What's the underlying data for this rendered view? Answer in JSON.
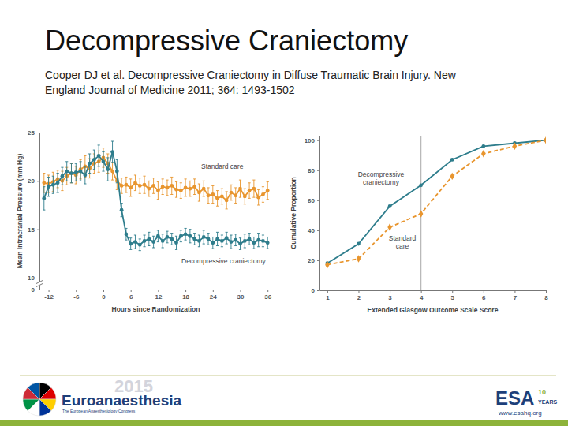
{
  "slide": {
    "title": "Decompressive Craniectomy",
    "citation": [
      "Cooper DJ et al. Decompressive Craniectomy in Diffuse Traumatic Brain Injury. New",
      "England Journal of Medicine 2011; 364: 1493-1502"
    ],
    "footer": {
      "congress": "Euroanaesthesia",
      "year": "2015",
      "congress_subtitle": "The European Anaesthesiology Congress",
      "society": "ESA",
      "anniversary": "10",
      "anniversary_unit": "YEARS",
      "url": "www.esahq.org"
    }
  },
  "chart_data": [
    {
      "type": "line",
      "x_label": "Hours since Randomization",
      "y_label": "Mean Intracranial Pressure (mm Hg)",
      "x": [
        -13,
        -12,
        -11,
        -10,
        -9,
        -8,
        -7,
        -6,
        -5,
        -4,
        -3,
        -2,
        -1,
        0,
        1,
        2,
        3,
        4,
        5,
        6,
        7,
        8,
        9,
        10,
        11,
        12,
        13,
        14,
        15,
        16,
        17,
        18,
        19,
        20,
        21,
        22,
        23,
        24,
        25,
        26,
        27,
        28,
        29,
        30,
        31,
        32,
        33,
        34,
        35,
        36
      ],
      "series": [
        {
          "name": "Standard care",
          "color": "#e8952e",
          "marker": "circle",
          "line_style": "solid",
          "values": [
            19.8,
            19.7,
            19.9,
            20.2,
            20.0,
            20.5,
            20.8,
            20.6,
            21.2,
            21.5,
            21.3,
            21.8,
            22.0,
            22.4,
            21.8,
            21.0,
            20.0,
            19.5,
            19.6,
            19.3,
            19.8,
            19.5,
            19.6,
            19.2,
            19.5,
            19.0,
            19.4,
            19.3,
            19.5,
            19.1,
            19.0,
            19.3,
            19.2,
            19.4,
            18.8,
            19.2,
            18.5,
            18.6,
            18.2,
            18.4,
            18.0,
            18.8,
            18.5,
            19.2,
            18.4,
            19.0,
            19.2,
            18.3,
            18.6,
            19.0
          ],
          "errors": [
            1.0,
            0.9,
            1.0,
            0.9,
            1.0,
            0.9,
            1.0,
            0.9,
            1.0,
            1.1,
            1.0,
            1.0,
            1.1,
            1.0,
            1.0,
            0.9,
            0.9,
            0.8,
            0.8,
            0.9,
            0.8,
            0.8,
            0.9,
            0.8,
            0.8,
            0.9,
            0.8,
            0.8,
            0.9,
            0.8,
            0.8,
            0.9,
            0.8,
            0.8,
            0.9,
            0.8,
            0.8,
            0.9,
            0.8,
            0.8,
            0.9,
            0.8,
            0.8,
            0.9,
            0.8,
            0.8,
            0.9,
            0.8,
            0.8,
            0.9
          ]
        },
        {
          "name": "Decompressive craniectomy",
          "color": "#2e7d8c",
          "marker": "circle",
          "line_style": "solid",
          "values": [
            18.2,
            19.4,
            19.6,
            19.8,
            20.5,
            21.0,
            20.8,
            20.9,
            21.0,
            20.6,
            21.8,
            22.2,
            22.6,
            22.0,
            21.2,
            23.0,
            21.0,
            17.0,
            14.5,
            13.5,
            13.7,
            13.4,
            13.8,
            14.0,
            13.7,
            14.3,
            13.8,
            14.2,
            14.0,
            13.6,
            14.3,
            14.5,
            14.3,
            14.0,
            13.8,
            14.2,
            14.0,
            13.6,
            14.0,
            13.8,
            14.1,
            13.7,
            13.9,
            13.5,
            13.8,
            14.0,
            13.6,
            13.9,
            13.8,
            13.6
          ],
          "errors": [
            1.2,
            1.0,
            0.9,
            1.0,
            0.9,
            1.0,
            1.0,
            0.9,
            1.0,
            0.9,
            1.0,
            1.0,
            1.1,
            1.0,
            1.2,
            1.1,
            1.2,
            0.7,
            0.6,
            0.6,
            0.7,
            0.6,
            0.6,
            0.7,
            0.6,
            0.6,
            0.7,
            0.6,
            0.6,
            0.7,
            0.6,
            0.6,
            0.7,
            0.6,
            0.6,
            0.7,
            0.6,
            0.6,
            0.7,
            0.6,
            0.6,
            0.7,
            0.6,
            0.6,
            0.7,
            0.6,
            0.6,
            0.7,
            0.6,
            0.6
          ]
        }
      ],
      "xlim": [
        -14,
        37
      ],
      "xticks": [
        -12,
        -6,
        0,
        6,
        12,
        18,
        24,
        30,
        36
      ],
      "ylim": [
        0,
        25
      ],
      "yticks": [
        0,
        10,
        15,
        20,
        25
      ]
    },
    {
      "type": "line",
      "x_label": "Extended Glasgow Outcome Scale Score",
      "y_label": "Cumulative Proportion",
      "x": [
        1,
        2,
        3,
        4,
        5,
        6,
        7,
        8
      ],
      "series": [
        {
          "name": "Decompressive craniectomy",
          "color": "#2e7d8c",
          "marker": "circle",
          "line_style": "solid",
          "values": [
            18,
            31,
            56,
            70,
            87,
            96,
            98,
            100
          ]
        },
        {
          "name": "Standard care",
          "color": "#e8952e",
          "marker": "diamond",
          "line_style": "dashed",
          "values": [
            17,
            21,
            42,
            51,
            76,
            91,
            96,
            100
          ]
        }
      ],
      "reference_line": 4,
      "xlim": [
        0.75,
        8
      ],
      "xticks": [
        1,
        2,
        3,
        4,
        5,
        6,
        7,
        8
      ],
      "ylim": [
        0,
        103
      ],
      "yticks": [
        0,
        20,
        40,
        60,
        80,
        100
      ]
    }
  ]
}
